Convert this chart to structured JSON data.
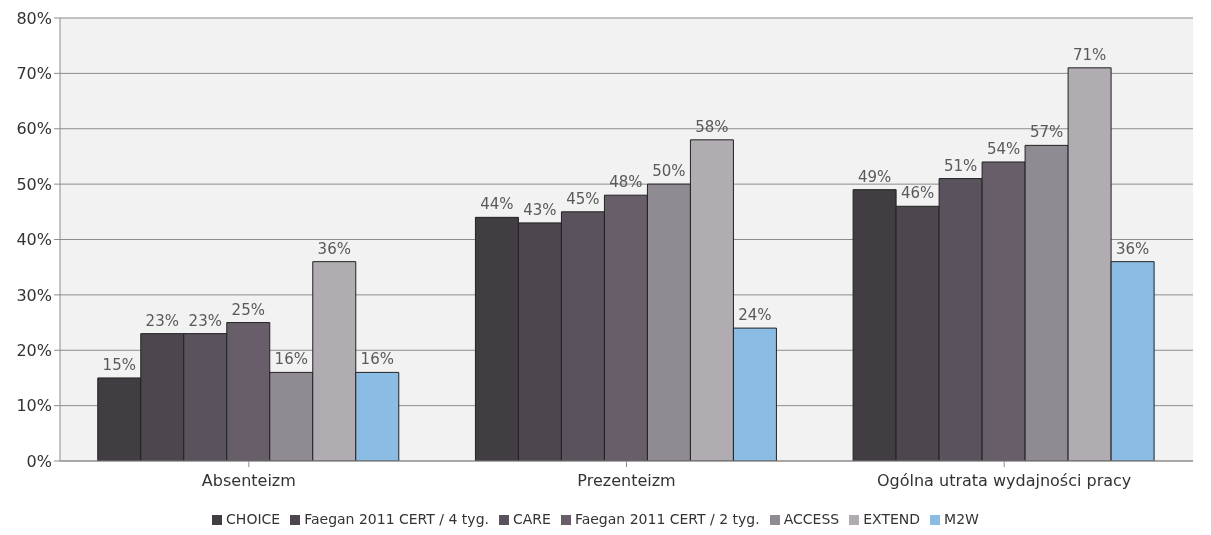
{
  "chart_data": {
    "type": "bar",
    "categories": [
      "Absenteizm",
      "Prezenteizm",
      "Ogólna utrata wydajności pracy"
    ],
    "series": [
      {
        "name": "CHOICE",
        "color": "#423c43",
        "values": [
          15,
          44,
          49
        ],
        "value_labels": [
          "15%",
          "44%",
          "49%"
        ]
      },
      {
        "name": "Faegan 2011 CERT / 4 tyg.",
        "color": "#4d464e",
        "values": [
          23,
          43,
          46
        ],
        "value_labels": [
          "23%",
          "43%",
          "46%"
        ]
      },
      {
        "name": "CARE",
        "color": "#5a525c",
        "values": [
          23,
          45,
          51
        ],
        "value_labels": [
          "23%",
          "45%",
          "51%"
        ]
      },
      {
        "name": "Faegan 2011 CERT / 2 tyg.",
        "color": "#675e69",
        "values": [
          25,
          48,
          54
        ],
        "value_labels": [
          "25%",
          "48%",
          "54%"
        ]
      },
      {
        "name": "ACCESS",
        "color": "#908a92",
        "values": [
          16,
          50,
          57
        ],
        "value_labels": [
          "16%",
          "50%",
          "57%"
        ]
      },
      {
        "name": "EXTEND",
        "color": "#b0acb2",
        "values": [
          36,
          58,
          71
        ],
        "value_labels": [
          "36%",
          "58%",
          "71%"
        ]
      },
      {
        "name": "M2W",
        "color": "#8bbde4",
        "values": [
          16,
          24,
          36
        ],
        "value_labels": [
          "16%",
          "24%",
          "36%"
        ]
      }
    ],
    "ylim": [
      0,
      80
    ],
    "yticks": [
      {
        "value": 0,
        "label": "0%"
      },
      {
        "value": 10,
        "label": "10%"
      },
      {
        "value": 20,
        "label": "20%"
      },
      {
        "value": 30,
        "label": "30%"
      },
      {
        "value": 40,
        "label": "40%"
      },
      {
        "value": 50,
        "label": "50%"
      },
      {
        "value": 60,
        "label": "60%"
      },
      {
        "value": 70,
        "label": "70%"
      },
      {
        "value": 80,
        "label": "80%"
      }
    ],
    "grid": "y",
    "legend": "bottom"
  }
}
